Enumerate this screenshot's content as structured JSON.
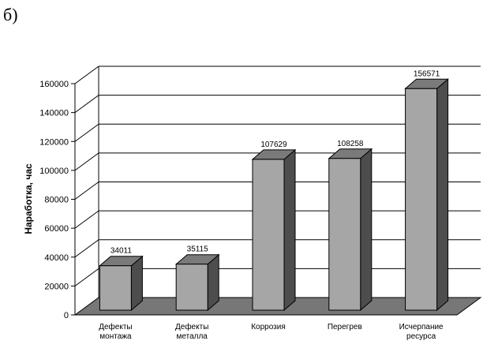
{
  "panel_label": "б)",
  "chart_data": {
    "type": "bar",
    "categories": [
      [
        "Дефекты",
        "монтажа"
      ],
      [
        "Дефекты",
        "металла"
      ],
      [
        "Коррозия"
      ],
      [
        "Перегрев"
      ],
      [
        "Исчерпание",
        "ресурса"
      ]
    ],
    "values": [
      34011,
      35115,
      107629,
      108258,
      156571
    ],
    "value_labels": [
      "34011",
      "35115",
      "107629",
      "108258",
      "156571"
    ],
    "title": "",
    "xlabel": "",
    "ylabel": "Наработка, час",
    "ylim": [
      0,
      160000
    ],
    "yticks": [
      0,
      20000,
      40000,
      60000,
      80000,
      100000,
      120000,
      140000,
      160000
    ],
    "ytick_labels": [
      "0",
      "20000",
      "40000",
      "60000",
      "80000",
      "100000",
      "120000",
      "140000",
      "160000"
    ],
    "grid": true,
    "style": "3d-column",
    "colors": {
      "bar_front": "#a6a6a6",
      "bar_top": "#7a7a7a",
      "bar_side": "#4d4d4d",
      "floor": "#777777",
      "grid": "#000000"
    }
  }
}
